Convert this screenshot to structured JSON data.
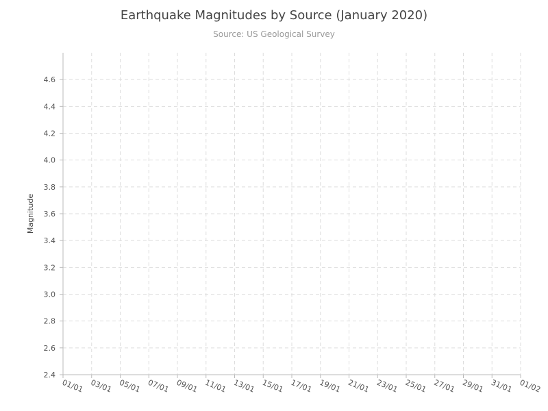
{
  "chart_data": {
    "type": "scatter",
    "title": "Earthquake Magnitudes by Source (January 2020)",
    "subtitle": "Source: US Geological Survey",
    "xlabel": "",
    "ylabel": "Magnitude",
    "x_ticks": [
      "01/01",
      "03/01",
      "05/01",
      "07/01",
      "09/01",
      "11/01",
      "13/01",
      "15/01",
      "17/01",
      "19/01",
      "21/01",
      "23/01",
      "25/01",
      "27/01",
      "29/01",
      "31/01",
      "01/02"
    ],
    "xlim": [
      "2020-01-01",
      "2020-02-01"
    ],
    "y_ticks": [
      2.4,
      2.6,
      2.8,
      3.0,
      3.2,
      3.4,
      3.6,
      3.8,
      4.0,
      4.2,
      4.4,
      4.6
    ],
    "ylim": [
      2.4,
      4.8
    ],
    "grid": true,
    "series": []
  }
}
